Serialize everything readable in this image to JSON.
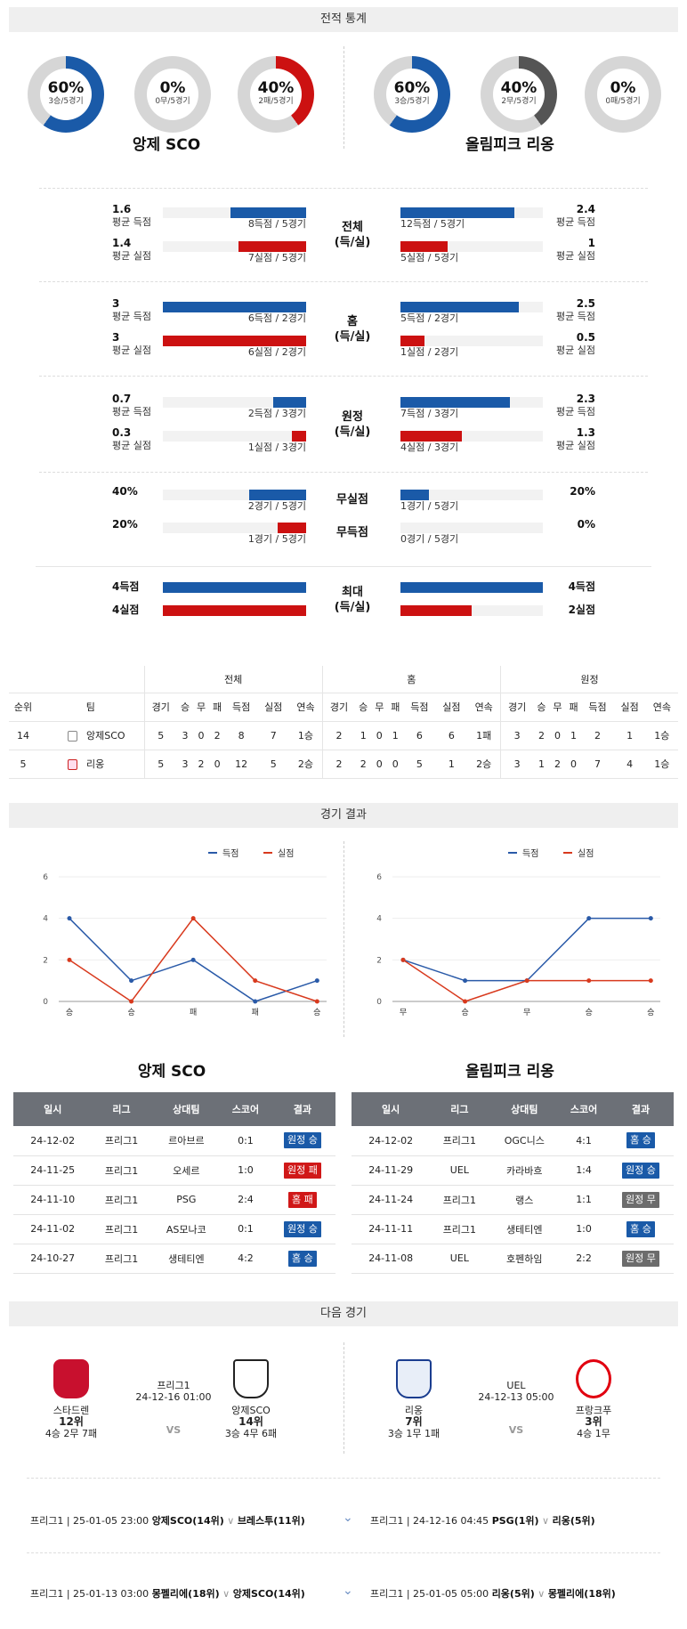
{
  "sections": {
    "stats": "전적 통계",
    "results": "경기 결과",
    "next": "다음 경기"
  },
  "teams": {
    "home": "앙제 SCO",
    "away": "올림피크 리옹"
  },
  "donuts": [
    {
      "pct": "60%",
      "sub": "3승/5경기",
      "value": 0.6,
      "color": "#1a5aa8"
    },
    {
      "pct": "0%",
      "sub": "0무/5경기",
      "value": 0,
      "color": "#888888"
    },
    {
      "pct": "40%",
      "sub": "2패/5경기",
      "value": 0.4,
      "color": "#cc1111"
    },
    {
      "pct": "60%",
      "sub": "3승/5경기",
      "value": 0.6,
      "color": "#1a5aa8"
    },
    {
      "pct": "40%",
      "sub": "2무/5경기",
      "value": 0.4,
      "color": "#555555"
    },
    {
      "pct": "0%",
      "sub": "0패/5경기",
      "value": 0,
      "color": "#cc1111"
    }
  ],
  "groups": [
    {
      "mid": [
        "전체",
        "(득/실)"
      ],
      "rows": [
        {
          "lv": "1.6",
          "ll": "평균 득점",
          "lc": "8득점 / 5경기",
          "lf": 0.53,
          "rv": "2.4",
          "rl": "평균 득점",
          "rc": "12득점 / 5경기",
          "rf": 0.8,
          "color": "blue"
        },
        {
          "lv": "1.4",
          "ll": "평균 실점",
          "lc": "7실점 / 5경기",
          "lf": 0.47,
          "rv": "1",
          "rl": "평균 실점",
          "rc": "5실점 / 5경기",
          "rf": 0.33,
          "color": "red"
        }
      ]
    },
    {
      "mid": [
        "홈",
        "(득/실)"
      ],
      "rows": [
        {
          "lv": "3",
          "ll": "평균 득점",
          "lc": "6득점 / 2경기",
          "lf": 1,
          "rv": "2.5",
          "rl": "평균 득점",
          "rc": "5득점 / 2경기",
          "rf": 0.83,
          "color": "blue"
        },
        {
          "lv": "3",
          "ll": "평균 실점",
          "lc": "6실점 / 2경기",
          "lf": 1,
          "rv": "0.5",
          "rl": "평균 실점",
          "rc": "1실점 / 2경기",
          "rf": 0.17,
          "color": "red"
        }
      ]
    },
    {
      "mid": [
        "원정",
        "(득/실)"
      ],
      "rows": [
        {
          "lv": "0.7",
          "ll": "평균 득점",
          "lc": "2득점 / 3경기",
          "lf": 0.23,
          "rv": "2.3",
          "rl": "평균 득점",
          "rc": "7득점 / 3경기",
          "rf": 0.77,
          "color": "blue"
        },
        {
          "lv": "0.3",
          "ll": "평균 실점",
          "lc": "1실점 / 3경기",
          "lf": 0.1,
          "rv": "1.3",
          "rl": "평균 실점",
          "rc": "4실점 / 3경기",
          "rf": 0.43,
          "color": "red"
        }
      ]
    }
  ],
  "cleansheet": [
    {
      "mid": "무실점",
      "lv": "40%",
      "lc": "2경기 / 5경기",
      "lf": 0.4,
      "rv": "20%",
      "rc": "1경기 / 5경기",
      "rf": 0.2,
      "color": "blue"
    },
    {
      "mid": "무득점",
      "lv": "20%",
      "lc": "1경기 / 5경기",
      "lf": 0.2,
      "rv": "0%",
      "rc": "0경기 / 5경기",
      "rf": 0,
      "color": "red"
    }
  ],
  "maxrow": {
    "mid": [
      "최대",
      "(득/실)"
    ],
    "l1": "4득점",
    "l2": "4실점",
    "r1": "4득점",
    "r2": "2실점",
    "lf1": 1,
    "lf2": 1,
    "rf1": 1,
    "rf2": 0.5
  },
  "standings": {
    "groups": [
      "전체",
      "홈",
      "원정"
    ],
    "head": [
      "순위",
      "팀",
      "경기",
      "승",
      "무",
      "패",
      "득점",
      "실점",
      "연속",
      "경기",
      "승",
      "무",
      "패",
      "득점",
      "실점",
      "연속",
      "경기",
      "승",
      "무",
      "패",
      "득점",
      "실점",
      "연속"
    ],
    "rows": [
      [
        "14",
        "앙제SCO",
        "5",
        "3",
        "0",
        "2",
        "8",
        "7",
        "1승",
        "2",
        "1",
        "0",
        "1",
        "6",
        "6",
        "1패",
        "3",
        "2",
        "0",
        "1",
        "2",
        "1",
        "1승"
      ],
      [
        "5",
        "리옹",
        "5",
        "3",
        "2",
        "0",
        "12",
        "5",
        "2승",
        "2",
        "2",
        "0",
        "0",
        "5",
        "1",
        "2승",
        "3",
        "1",
        "2",
        "0",
        "7",
        "4",
        "1승"
      ]
    ]
  },
  "chart_data": [
    {
      "type": "line",
      "x": [
        "승",
        "승",
        "패",
        "패",
        "승"
      ],
      "ylim": [
        0,
        6
      ],
      "yticks": [
        "0",
        "2",
        "4",
        "6"
      ],
      "legend": "top-right",
      "series": [
        {
          "name": "득점",
          "color": "#2a5aa8",
          "values": [
            4,
            1,
            2,
            0,
            1
          ]
        },
        {
          "name": "실점",
          "color": "#d83a1e",
          "values": [
            2,
            0,
            4,
            1,
            0
          ]
        }
      ]
    },
    {
      "type": "line",
      "x": [
        "무",
        "승",
        "무",
        "승",
        "승"
      ],
      "ylim": [
        0,
        6
      ],
      "yticks": [
        "0",
        "2",
        "4",
        "6"
      ],
      "legend": "top-right",
      "series": [
        {
          "name": "득점",
          "color": "#2a5aa8",
          "values": [
            2,
            1,
            1,
            4,
            4
          ]
        },
        {
          "name": "실점",
          "color": "#d83a1e",
          "values": [
            2,
            0,
            1,
            1,
            1
          ]
        }
      ]
    }
  ],
  "results": {
    "head": [
      "일시",
      "리그",
      "상대팀",
      "스코어",
      "결과"
    ],
    "home": [
      [
        "24-12-02",
        "프리그1",
        "르아브르",
        "0:1",
        "원정 승",
        "blue"
      ],
      [
        "24-11-25",
        "프리그1",
        "오세르",
        "1:0",
        "원정 패",
        "red"
      ],
      [
        "24-11-10",
        "프리그1",
        "PSG",
        "2:4",
        "홈 패",
        "red"
      ],
      [
        "24-11-02",
        "프리그1",
        "AS모나코",
        "0:1",
        "원정 승",
        "blue"
      ],
      [
        "24-10-27",
        "프리그1",
        "생테티엔",
        "4:2",
        "홈 승",
        "blue"
      ]
    ],
    "away": [
      [
        "24-12-02",
        "프리그1",
        "OGC니스",
        "4:1",
        "홈 승",
        "blue"
      ],
      [
        "24-11-29",
        "UEL",
        "카라바흐",
        "1:4",
        "원정 승",
        "blue"
      ],
      [
        "24-11-24",
        "프리그1",
        "랭스",
        "1:1",
        "원정 무",
        "gray"
      ],
      [
        "24-11-11",
        "프리그1",
        "생테티엔",
        "1:0",
        "홈 승",
        "blue"
      ],
      [
        "24-11-08",
        "UEL",
        "호펜하임",
        "2:2",
        "원정 무",
        "gray"
      ]
    ]
  },
  "next": [
    {
      "league": "프리그1",
      "time": "24-12-16 01:00",
      "vs": "VS",
      "t1": {
        "name": "스타드렌",
        "rank": "12위",
        "rec": "4승 2무 7패"
      },
      "t2": {
        "name": "앙제SCO",
        "rank": "14위",
        "rec": "3승 4무 6패"
      }
    },
    {
      "league": "UEL",
      "time": "24-12-13 05:00",
      "vs": "VS",
      "t1": {
        "name": "리옹",
        "rank": "7위",
        "rec": "3승 1무 1패"
      },
      "t2": {
        "name": "프랑크푸",
        "rank": "3위",
        "rec": "4승 1무"
      }
    }
  ],
  "schedule": [
    {
      "left": {
        "info": "프리그1 | 25-01-05 23:00",
        "t1": "앙제SCO(14위)",
        "t2": "브레스투(11위)"
      },
      "right": {
        "info": "프리그1 | 24-12-16 04:45",
        "t1": "PSG(1위)",
        "t2": "리옹(5위)"
      }
    },
    {
      "left": {
        "info": "프리그1 | 25-01-13 03:00",
        "t1": "몽펠리에(18위)",
        "t2": "앙제SCO(14위)"
      },
      "right": {
        "info": "프리그1 | 25-01-05 05:00",
        "t1": "리옹(5위)",
        "t2": "몽펠리에(18위)"
      }
    }
  ]
}
